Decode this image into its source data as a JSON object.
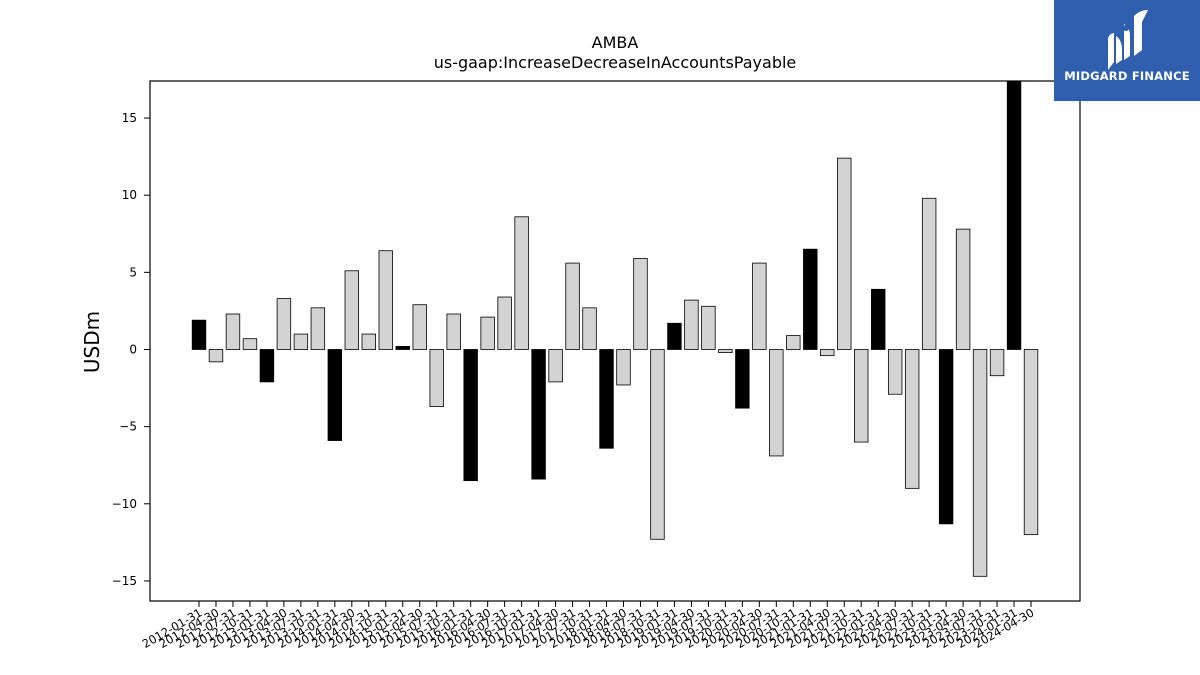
{
  "brand": {
    "name": "MIDGARD FINANCE",
    "bg_color": "#2f5fae",
    "icon": "midgard-m-logo-icon"
  },
  "chart_data": {
    "type": "bar",
    "title": "AMBA",
    "subtitle": "us-gaap:IncreaseDecreaseInAccountsPayable",
    "xlabel": "",
    "ylabel": "USDm",
    "ylim": [
      -16.3,
      17.4
    ],
    "yticks": [
      -15,
      -10,
      -5,
      0,
      5,
      10,
      15
    ],
    "ytick_labels": [
      "−15",
      "−10",
      "−5",
      "0",
      "5",
      "10",
      "15"
    ],
    "grid": false,
    "colors": {
      "highlight": "#000000",
      "regular": "#d3d3d3",
      "edge": "#000000"
    },
    "categories": [
      "2012-01-31",
      "2012-04-30",
      "2012-07-31",
      "2012-10-31",
      "2013-01-31",
      "2013-04-30",
      "2013-07-31",
      "2013-10-31",
      "2014-01-31",
      "2014-04-30",
      "2014-07-31",
      "2014-10-31",
      "2015-01-31",
      "2015-04-30",
      "2015-07-31",
      "2015-10-31",
      "2016-01-31",
      "2016-04-30",
      "2016-07-31",
      "2016-10-31",
      "2017-01-31",
      "2017-04-30",
      "2017-07-31",
      "2017-10-31",
      "2018-01-31",
      "2018-04-30",
      "2018-07-31",
      "2018-10-31",
      "2019-01-31",
      "2019-04-30",
      "2019-07-31",
      "2019-10-31",
      "2020-01-31",
      "2020-04-30",
      "2020-07-31",
      "2020-10-31",
      "2021-01-31",
      "2021-04-30",
      "2021-07-31",
      "2021-10-31",
      "2022-01-31",
      "2022-04-30",
      "2022-07-31",
      "2022-10-31",
      "2023-01-31",
      "2023-04-30",
      "2023-07-31",
      "2023-10-31",
      "2024-01-31",
      "2024-04-30"
    ],
    "values": [
      1.9,
      -0.8,
      2.3,
      0.7,
      -2.1,
      3.3,
      1.0,
      2.7,
      -5.9,
      5.1,
      1.0,
      6.4,
      0.2,
      2.9,
      -3.7,
      2.3,
      -8.5,
      2.1,
      3.4,
      8.6,
      -8.4,
      -2.1,
      5.6,
      2.7,
      -6.4,
      -2.3,
      5.9,
      -12.3,
      1.7,
      3.2,
      2.8,
      -0.2,
      -3.8,
      5.6,
      -6.9,
      0.9,
      6.5,
      -0.4,
      12.4,
      -6.0,
      3.9,
      -2.9,
      -9.0,
      9.8,
      -11.3,
      7.8,
      -14.7,
      -1.7,
      17.4,
      -12.0
    ],
    "highlight": [
      true,
      false,
      false,
      false,
      true,
      false,
      false,
      false,
      true,
      false,
      false,
      false,
      true,
      false,
      false,
      false,
      true,
      false,
      false,
      false,
      true,
      false,
      false,
      false,
      true,
      false,
      false,
      false,
      true,
      false,
      false,
      false,
      true,
      false,
      false,
      false,
      true,
      false,
      false,
      false,
      true,
      false,
      false,
      false,
      true,
      false,
      false,
      false,
      true,
      false
    ]
  }
}
